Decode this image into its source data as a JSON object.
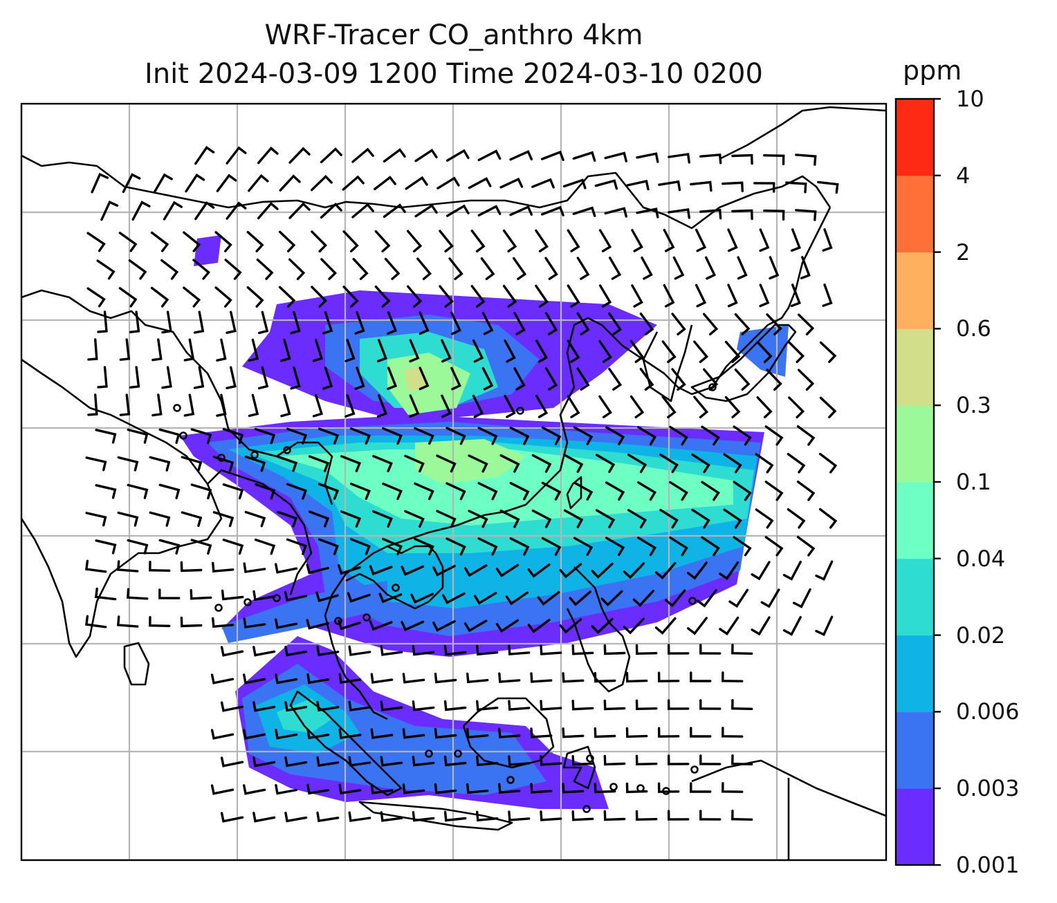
{
  "title": {
    "line1": "WRF-Tracer CO_anthro 4km",
    "line2": "Init 2024-03-09 1200 Time 2024-03-10 0200"
  },
  "colorbar": {
    "unit": "ppm",
    "levels": [
      "0.001",
      "0.003",
      "0.006",
      "0.02",
      "0.04",
      "0.1",
      "0.3",
      "0.6",
      "2",
      "4",
      "10"
    ],
    "colors": [
      "#6a2cff",
      "#3a74f2",
      "#0fb3e6",
      "#2fdcd2",
      "#6effc4",
      "#9bf99a",
      "#d3de8a",
      "#ffb05e",
      "#ff7038",
      "#ff2a14"
    ]
  },
  "map": {
    "gridlines": true,
    "coastlines": true,
    "wind_barbs": true,
    "field": "CO_anthro tracer concentration"
  }
}
